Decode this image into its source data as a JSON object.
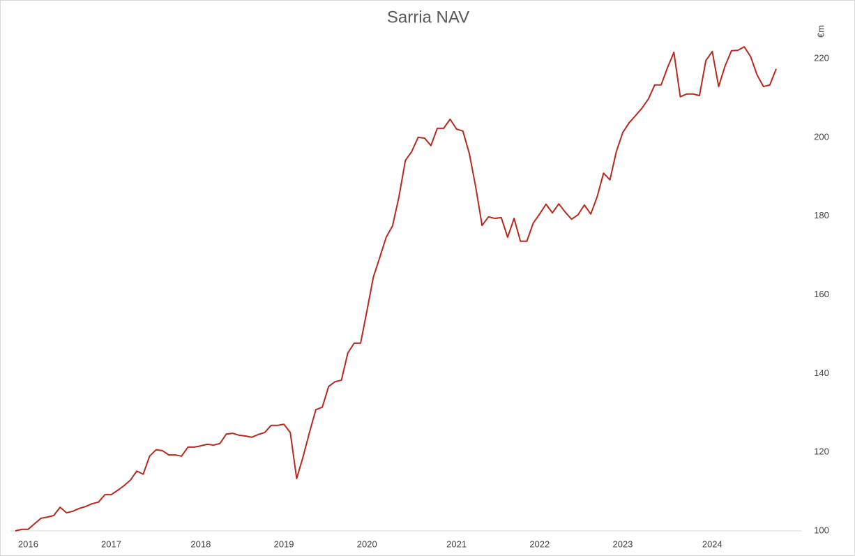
{
  "chart_data": {
    "type": "line",
    "title": "Sarria NAV",
    "y_label": "€m",
    "categories": [
      null,
      null,
      "2016",
      null,
      null,
      null,
      null,
      null,
      null,
      null,
      null,
      null,
      null,
      null,
      null,
      "2017",
      null,
      null,
      null,
      null,
      null,
      null,
      null,
      null,
      null,
      null,
      null,
      null,
      null,
      "2018",
      null,
      null,
      null,
      null,
      null,
      null,
      null,
      null,
      null,
      null,
      null,
      null,
      "2019",
      null,
      null,
      null,
      null,
      null,
      null,
      null,
      null,
      null,
      null,
      null,
      null,
      "2020",
      null,
      null,
      null,
      null,
      null,
      null,
      null,
      null,
      null,
      null,
      null,
      null,
      null,
      "2021",
      null,
      null,
      null,
      null,
      null,
      null,
      null,
      null,
      null,
      null,
      null,
      null,
      "2022",
      null,
      null,
      null,
      null,
      null,
      null,
      null,
      null,
      null,
      null,
      null,
      null,
      "2023",
      null,
      null,
      null,
      null,
      null,
      null,
      null,
      null,
      null,
      null,
      null,
      null,
      null,
      "2024",
      null,
      null,
      null,
      null,
      null,
      null,
      null,
      null,
      null,
      null
    ],
    "series": [
      {
        "name": "Sarria NAV",
        "color": "#b8281c",
        "values": [
          100,
          100.4,
          100.4,
          101.8,
          103.2,
          103.5,
          103.9,
          106.0,
          104.6,
          105.0,
          105.7,
          106.2,
          106.9,
          107.3,
          109.2,
          109.2,
          110.3,
          111.5,
          112.9,
          115.2,
          114.4,
          119.0,
          120.6,
          120.4,
          119.3,
          119.3,
          119.0,
          121.3,
          121.3,
          121.6,
          122.0,
          121.8,
          122.2,
          124.6,
          124.8,
          124.3,
          124.1,
          123.8,
          124.5,
          125.0,
          126.8,
          126.8,
          127.1,
          125.0,
          113.3,
          118.8,
          125.0,
          130.8,
          131.4,
          136.7,
          137.9,
          138.3,
          145.2,
          147.7,
          147.7,
          156.0,
          164.5,
          169.5,
          174.6,
          177.5,
          184.9,
          194.1,
          196.4,
          200.0,
          199.8,
          197.9,
          202.3,
          202.3,
          204.6,
          202.1,
          201.6,
          195.9,
          187.4,
          177.6,
          179.8,
          179.4,
          179.6,
          174.6,
          179.4,
          173.6,
          173.6,
          178.2,
          180.5,
          183.0,
          180.8,
          183.1,
          181.0,
          179.2,
          180.3,
          182.8,
          180.5,
          184.9,
          190.9,
          189.2,
          196.4,
          201.2,
          203.7,
          205.5,
          207.4,
          209.7,
          213.3,
          213.3,
          217.7,
          221.6,
          210.3,
          211.0,
          211.0,
          210.6,
          219.5,
          221.8,
          212.9,
          218.1,
          222.0,
          222.1,
          223.0,
          220.5,
          215.9,
          212.9,
          213.3,
          217.4
        ]
      }
    ],
    "ylim": [
      100,
      220
    ],
    "yticks": [
      100,
      120,
      140,
      160,
      180,
      200,
      220
    ],
    "grid": false
  }
}
